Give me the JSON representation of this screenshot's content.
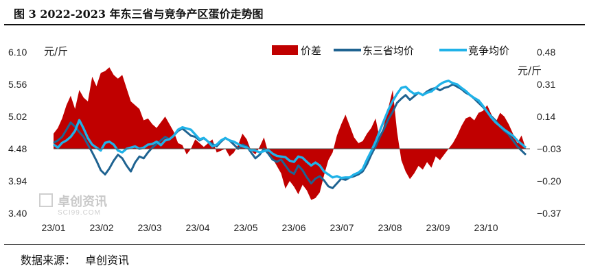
{
  "title": "图 3 2022-2023 年东三省与竞争产区蛋价走势图",
  "source": {
    "label": "数据来源：",
    "name": "卓创资讯"
  },
  "watermark": {
    "text": "卓创资讯",
    "sub": "SCI99.COM"
  },
  "chart_data": {
    "type": "line",
    "left_axis": {
      "unit": "元/斤",
      "ticks": [
        "6.10",
        "5.56",
        "5.02",
        "4.48",
        "3.94",
        "3.40"
      ],
      "ylim": [
        3.4,
        6.1
      ]
    },
    "right_axis": {
      "unit": "元/斤",
      "ticks": [
        "0.48",
        "0.31",
        "0.14",
        "-0.03",
        "-0.20",
        "-0.37"
      ],
      "ylim": [
        -0.37,
        0.48
      ]
    },
    "x_ticks": [
      "23/01",
      "23/02",
      "23/03",
      "23/04",
      "23/05",
      "23/06",
      "23/07",
      "23/08",
      "23/09",
      "23/10"
    ],
    "legend_position": "top-right",
    "colors": {
      "diff": "#c00000",
      "northeast": "#1f6391",
      "competing": "#20b2e8"
    },
    "series": [
      {
        "name": "价差",
        "kind": "area",
        "axis": "right",
        "values": [
          0.05,
          0.08,
          0.13,
          0.2,
          0.25,
          0.18,
          0.28,
          0.24,
          0.22,
          0.35,
          0.3,
          0.37,
          0.38,
          0.4,
          0.36,
          0.34,
          0.36,
          0.29,
          0.22,
          0.2,
          0.18,
          0.12,
          0.13,
          0.1,
          0.08,
          0.11,
          0.14,
          0.1,
          0.06,
          0.0,
          -0.01,
          -0.06,
          -0.03,
          0.02,
          0.0,
          -0.02,
          0.0,
          0.02,
          -0.05,
          -0.04,
          -0.03,
          -0.07,
          -0.05,
          -0.01,
          0.05,
          0.02,
          -0.04,
          -0.06,
          -0.02,
          0.03,
          -0.05,
          -0.08,
          -0.12,
          -0.16,
          -0.24,
          -0.2,
          -0.23,
          -0.27,
          -0.22,
          -0.25,
          -0.3,
          -0.29,
          -0.26,
          -0.17,
          -0.09,
          -0.05,
          0.04,
          0.1,
          0.15,
          0.09,
          0.03,
          0.0,
          0.01,
          0.05,
          0.08,
          0.13,
          0.02,
          0.1,
          0.19,
          0.28,
          0.06,
          -0.09,
          -0.15,
          -0.19,
          -0.16,
          -0.12,
          -0.14,
          -0.1,
          -0.13,
          -0.07,
          -0.09,
          -0.06,
          -0.03,
          0.0,
          0.04,
          0.09,
          0.13,
          0.14,
          0.12,
          0.16,
          0.17,
          0.2,
          0.15,
          0.11,
          0.16,
          0.14,
          0.1,
          0.05,
          0.0,
          0.04,
          -0.03
        ]
      },
      {
        "name": "东三省均价",
        "kind": "line",
        "axis": "left",
        "values": [
          4.58,
          4.62,
          4.68,
          4.8,
          4.92,
          4.85,
          4.76,
          4.68,
          4.55,
          4.42,
          4.28,
          4.12,
          4.05,
          4.15,
          4.28,
          4.38,
          4.32,
          4.2,
          4.1,
          4.25,
          4.35,
          4.32,
          4.42,
          4.5,
          4.56,
          4.62,
          4.68,
          4.64,
          4.7,
          4.78,
          4.82,
          4.76,
          4.7,
          4.68,
          4.62,
          4.66,
          4.6,
          4.56,
          4.52,
          4.6,
          4.66,
          4.62,
          4.55,
          4.48,
          4.55,
          4.52,
          4.42,
          4.32,
          4.38,
          4.48,
          4.4,
          4.3,
          4.26,
          4.3,
          4.2,
          4.1,
          4.06,
          4.2,
          4.12,
          4.0,
          3.9,
          3.98,
          4.02,
          3.95,
          3.85,
          3.82,
          3.9,
          3.98,
          3.96,
          4.0,
          4.02,
          4.05,
          4.1,
          4.22,
          4.38,
          4.52,
          4.68,
          4.82,
          4.98,
          5.1,
          5.25,
          5.32,
          5.38,
          5.3,
          5.36,
          5.42,
          5.38,
          5.44,
          5.48,
          5.5,
          5.46,
          5.5,
          5.52,
          5.56,
          5.52,
          5.48,
          5.42,
          5.38,
          5.32,
          5.25,
          5.18,
          5.1,
          5.02,
          4.95,
          4.85,
          4.78,
          4.72,
          4.62,
          4.52,
          4.45,
          4.38
        ]
      },
      {
        "name": "竞争均价",
        "kind": "line",
        "axis": "left",
        "values": [
          4.55,
          4.5,
          4.58,
          4.62,
          4.68,
          4.78,
          4.96,
          4.82,
          4.66,
          4.55,
          4.5,
          4.45,
          4.58,
          4.6,
          4.55,
          4.45,
          4.42,
          4.48,
          4.5,
          4.52,
          4.48,
          4.5,
          4.55,
          4.56,
          4.6,
          4.54,
          4.62,
          4.64,
          4.7,
          4.8,
          4.84,
          4.82,
          4.8,
          4.72,
          4.64,
          4.66,
          4.6,
          4.52,
          4.55,
          4.62,
          4.66,
          4.62,
          4.6,
          4.56,
          4.52,
          4.5,
          4.46,
          4.45,
          4.42,
          4.44,
          4.46,
          4.4,
          4.36,
          4.35,
          4.34,
          4.28,
          4.26,
          4.35,
          4.33,
          4.26,
          4.2,
          4.25,
          4.2,
          4.1,
          4.05,
          4.0,
          4.02,
          3.99,
          4.0,
          4.0,
          4.05,
          4.08,
          4.14,
          4.3,
          4.44,
          4.6,
          4.78,
          4.96,
          5.14,
          5.28,
          5.4,
          5.5,
          5.52,
          5.45,
          5.4,
          5.42,
          5.38,
          5.42,
          5.44,
          5.5,
          5.56,
          5.6,
          5.62,
          5.58,
          5.56,
          5.5,
          5.45,
          5.38,
          5.33,
          5.29,
          5.2,
          5.1,
          5.0,
          4.92,
          4.86,
          4.8,
          4.75,
          4.7,
          4.62,
          4.56,
          4.5
        ]
      }
    ]
  }
}
